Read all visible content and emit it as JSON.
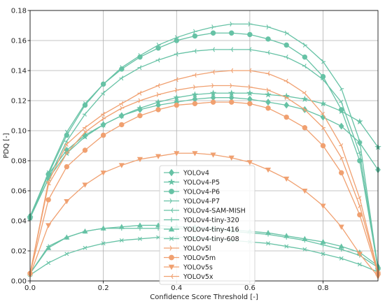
{
  "chart_data": {
    "type": "line",
    "title": "",
    "xlabel": "Confidence Score Threshold [-]",
    "ylabel": "PDQ [-]",
    "xlim": [
      0.0,
      0.95
    ],
    "ylim": [
      0.0,
      0.18
    ],
    "xticks": [
      "0.0",
      "0.2",
      "0.4",
      "0.6",
      "0.8"
    ],
    "xtick_values": [
      0.0,
      0.2,
      0.4,
      0.6,
      0.8
    ],
    "yticks": [
      "0.00",
      "0.02",
      "0.04",
      "0.06",
      "0.08",
      "0.10",
      "0.12",
      "0.14",
      "0.16",
      "0.18"
    ],
    "ytick_values": [
      0.0,
      0.02,
      0.04,
      0.06,
      0.08,
      0.1,
      0.12,
      0.14,
      0.16,
      0.18
    ],
    "grid": true,
    "legend_position": "bottom-center",
    "x": [
      0.0,
      0.05,
      0.1,
      0.15,
      0.2,
      0.25,
      0.3,
      0.35,
      0.4,
      0.45,
      0.5,
      0.55,
      0.6,
      0.65,
      0.7,
      0.75,
      0.8,
      0.85,
      0.9,
      0.95
    ],
    "series": [
      {
        "name": "YOLOv4",
        "color": "#66c2a5",
        "marker": "diamond",
        "values": [
          0.043,
          0.071,
          0.087,
          0.097,
          0.104,
          0.11,
          0.114,
          0.117,
          0.119,
          0.121,
          0.122,
          0.122,
          0.121,
          0.119,
          0.117,
          0.114,
          0.109,
          0.103,
          0.092,
          0.074
        ]
      },
      {
        "name": "YOLOv4-P5",
        "color": "#66c2a5",
        "marker": "star",
        "values": [
          0.042,
          0.068,
          0.085,
          0.096,
          0.104,
          0.11,
          0.115,
          0.119,
          0.122,
          0.124,
          0.125,
          0.125,
          0.125,
          0.124,
          0.123,
          0.121,
          0.118,
          0.113,
          0.106,
          0.089
        ]
      },
      {
        "name": "YOLOv4-P6",
        "color": "#66c2a5",
        "marker": "circle",
        "values": [
          0.042,
          0.071,
          0.097,
          0.117,
          0.131,
          0.141,
          0.149,
          0.155,
          0.16,
          0.163,
          0.165,
          0.165,
          0.164,
          0.161,
          0.157,
          0.149,
          0.136,
          0.114,
          0.08,
          0.008
        ]
      },
      {
        "name": "YOLOv4-P7",
        "color": "#66c2a5",
        "marker": "tri_right",
        "values": [
          0.043,
          0.072,
          0.099,
          0.118,
          0.131,
          0.142,
          0.15,
          0.157,
          0.162,
          0.166,
          0.169,
          0.171,
          0.171,
          0.169,
          0.165,
          0.157,
          0.146,
          0.128,
          0.093,
          0.008
        ]
      },
      {
        "name": "YOLOv4-SAM-MISH",
        "color": "#66c2a5",
        "marker": "tri_left",
        "values": [
          0.042,
          0.068,
          0.093,
          0.111,
          0.125,
          0.135,
          0.142,
          0.147,
          0.151,
          0.153,
          0.154,
          0.154,
          0.154,
          0.152,
          0.149,
          0.143,
          0.134,
          0.119,
          0.085,
          0.009
        ]
      },
      {
        "name": "YOLOv4-tiny-320",
        "color": "#66c2a5",
        "marker": "plus",
        "values": [
          0.005,
          0.023,
          0.029,
          0.033,
          0.035,
          0.035,
          0.035,
          0.035,
          0.035,
          0.034,
          0.034,
          0.033,
          0.032,
          0.031,
          0.029,
          0.027,
          0.024,
          0.021,
          0.017,
          0.009
        ]
      },
      {
        "name": "YOLOv4-tiny-416",
        "color": "#66c2a5",
        "marker": "triangle",
        "values": [
          0.005,
          0.022,
          0.029,
          0.033,
          0.035,
          0.036,
          0.037,
          0.037,
          0.036,
          0.036,
          0.035,
          0.034,
          0.033,
          0.032,
          0.03,
          0.028,
          0.026,
          0.023,
          0.019,
          0.01
        ]
      },
      {
        "name": "YOLOv4-tiny-608",
        "color": "#66c2a5",
        "marker": "x",
        "values": [
          0.004,
          0.012,
          0.018,
          0.022,
          0.025,
          0.027,
          0.028,
          0.029,
          0.029,
          0.029,
          0.028,
          0.027,
          0.026,
          0.025,
          0.023,
          0.021,
          0.018,
          0.015,
          0.011,
          0.006
        ]
      },
      {
        "name": "YOLOv5l",
        "color": "#f0a070",
        "marker": "tri_right",
        "values": [
          0.005,
          0.064,
          0.085,
          0.099,
          0.108,
          0.115,
          0.12,
          0.124,
          0.127,
          0.129,
          0.13,
          0.13,
          0.129,
          0.127,
          0.122,
          0.114,
          0.102,
          0.082,
          0.05,
          0.006
        ]
      },
      {
        "name": "YOLOv5m",
        "color": "#f0a070",
        "marker": "circle",
        "values": [
          0.005,
          0.054,
          0.076,
          0.087,
          0.097,
          0.104,
          0.11,
          0.114,
          0.117,
          0.118,
          0.119,
          0.119,
          0.118,
          0.115,
          0.109,
          0.102,
          0.09,
          0.072,
          0.044,
          0.005
        ]
      },
      {
        "name": "YOLOv5s",
        "color": "#f0a070",
        "marker": "triangle_down",
        "values": [
          0.004,
          0.037,
          0.053,
          0.064,
          0.072,
          0.077,
          0.081,
          0.083,
          0.085,
          0.085,
          0.084,
          0.082,
          0.079,
          0.074,
          0.068,
          0.06,
          0.05,
          0.036,
          0.018,
          0.003
        ]
      },
      {
        "name": "YOLOv5x",
        "color": "#f0a070",
        "marker": "tri_left",
        "values": [
          0.005,
          0.066,
          0.091,
          0.102,
          0.111,
          0.118,
          0.125,
          0.13,
          0.134,
          0.137,
          0.139,
          0.14,
          0.14,
          0.138,
          0.133,
          0.125,
          0.111,
          0.09,
          0.055,
          0.006
        ]
      }
    ]
  }
}
